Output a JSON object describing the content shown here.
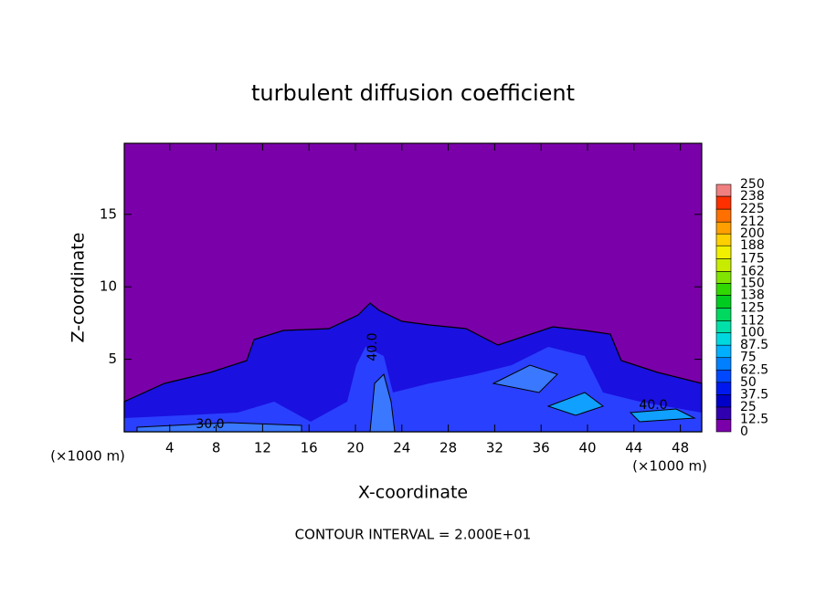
{
  "chart_data": {
    "type": "contour",
    "title": "turbulent diffusion coefficient",
    "x_label": "X-coordinate",
    "y_label": "Z-coordinate",
    "x_unit": "(×1000 m)",
    "y_unit": "(×1000 m)",
    "footer": "CONTOUR INTERVAL = 2.000E+01",
    "xlim": [
      0,
      50
    ],
    "xticks": [
      4,
      8,
      12,
      16,
      20,
      24,
      28,
      32,
      36,
      40,
      44,
      48
    ],
    "ylim": [
      0,
      19.9
    ],
    "yticks": [
      5,
      10,
      15
    ],
    "annotations": [
      "40.0",
      "40.0",
      "30.0"
    ],
    "colorbar": {
      "levels": [
        0,
        12.5,
        25,
        37.5,
        50,
        62.5,
        75,
        87.5,
        100,
        112,
        125,
        138,
        150,
        162,
        175,
        188,
        200,
        212,
        225,
        238,
        250
      ],
      "colors": [
        "#7a00aa",
        "#3000b0",
        "#0000c8",
        "#0018f0",
        "#0048ff",
        "#0080ff",
        "#00b0ff",
        "#00d8e0",
        "#00e0a8",
        "#00d860",
        "#00cc20",
        "#30d800",
        "#80e400",
        "#c8ec00",
        "#f0f000",
        "#ffd000",
        "#ffa000",
        "#ff7000",
        "#ff3000",
        "#f08080"
      ]
    }
  }
}
